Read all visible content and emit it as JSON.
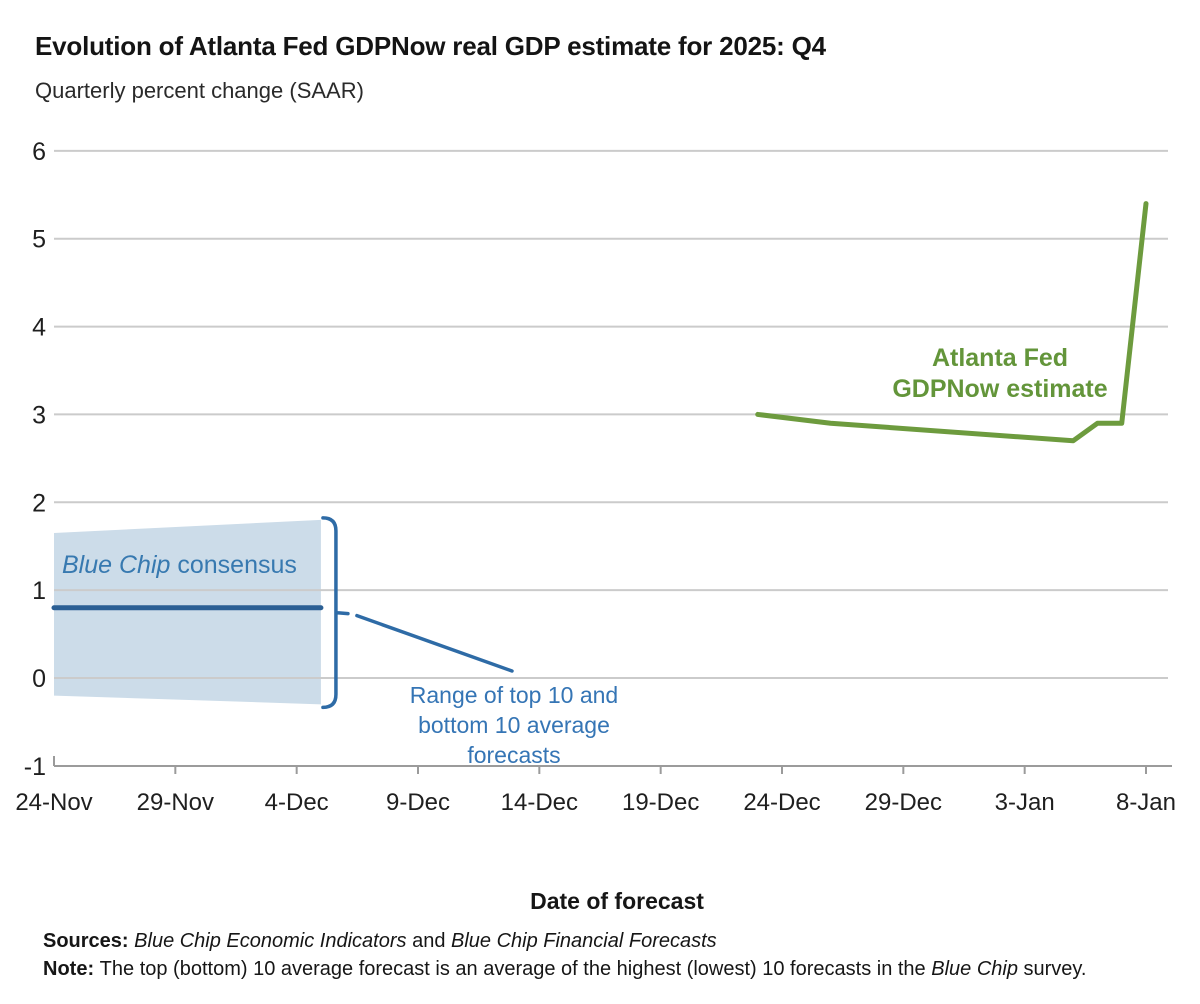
{
  "header": {
    "title": "Evolution of Atlanta Fed GDPNow real GDP estimate for 2025: Q4",
    "subtitle": "Quarterly percent change (SAAR)"
  },
  "chart_data": {
    "type": "line",
    "title": "Evolution of Atlanta Fed GDPNow real GDP estimate for 2025: Q4",
    "subtitle": "Quarterly percent change (SAAR)",
    "xlabel": "Date of forecast",
    "ylabel": "Quarterly percent change (SAAR)",
    "ylim": [
      -1,
      6
    ],
    "yticks": [
      6,
      5,
      4,
      3,
      2,
      1,
      0,
      -1
    ],
    "grid": "horizontal",
    "x_ticks": [
      {
        "day": 0,
        "label": "24-Nov"
      },
      {
        "day": 5,
        "label": "29-Nov"
      },
      {
        "day": 10,
        "label": "4-Dec"
      },
      {
        "day": 15,
        "label": "9-Dec"
      },
      {
        "day": 20,
        "label": "14-Dec"
      },
      {
        "day": 25,
        "label": "19-Dec"
      },
      {
        "day": 30,
        "label": "24-Dec"
      },
      {
        "day": 35,
        "label": "29-Dec"
      },
      {
        "day": 40,
        "label": "3-Jan"
      },
      {
        "day": 45,
        "label": "8-Jan"
      }
    ],
    "series": [
      {
        "name": "Atlanta Fed GDPNow estimate",
        "color": "#6d9b3e",
        "points": [
          {
            "date": "23-Dec",
            "day": 29,
            "value": 3.0
          },
          {
            "date": "26-Dec",
            "day": 32,
            "value": 2.9
          },
          {
            "date": "5-Jan",
            "day": 42,
            "value": 2.7
          },
          {
            "date": "6-Jan",
            "day": 43,
            "value": 2.9
          },
          {
            "date": "7-Jan",
            "day": 44,
            "value": 2.9
          },
          {
            "date": "8-Jan",
            "day": 45,
            "value": 5.4
          }
        ]
      },
      {
        "name": "Blue Chip consensus",
        "color": "#2b5f94",
        "points": [
          {
            "date": "24-Nov",
            "day": 0,
            "value": 0.8
          },
          {
            "date": "5-Dec",
            "day": 11,
            "value": 0.8
          }
        ]
      }
    ],
    "band": {
      "name": "Range of top 10 and bottom 10 average forecasts",
      "color": "#ccdce9",
      "points": [
        {
          "date": "24-Nov",
          "day": 0,
          "top": 1.65,
          "bottom": -0.2
        },
        {
          "date": "5-Dec",
          "day": 11,
          "top": 1.8,
          "bottom": -0.3
        }
      ]
    }
  },
  "annotations": {
    "bluechip": {
      "italic": "Blue Chip",
      "regular": " consensus"
    },
    "gdpnow": {
      "line1": "Atlanta Fed",
      "line2": "GDPNow estimate"
    },
    "range": {
      "text": "Range of top 10 and bottom 10 average forecasts"
    }
  },
  "footer": {
    "xlabel": "Date of forecast",
    "sources_label": "Sources: ",
    "sources_italic1": "Blue Chip Economic Indicators",
    "sources_mid": " and ",
    "sources_italic2": "Blue Chip Financial Forecasts",
    "note_label": "Note: ",
    "note_text1": "The top (bottom) 10 average forecast is an average of the highest (lowest) 10 forecasts in the ",
    "note_italic": "Blue Chip",
    "note_text2": " survey."
  },
  "colors": {
    "gdpnow_line": "#6d9b3e",
    "gdpnow_label": "#63953a",
    "consensus_line": "#2b5f94",
    "band_fill": "#ccdce9",
    "blue_annotation": "#3575b5",
    "bracket": "#2e6ba6",
    "gridline": "#cbcbcb",
    "axis": "#9b9b9b",
    "tick_label": "#1f1f1f"
  }
}
